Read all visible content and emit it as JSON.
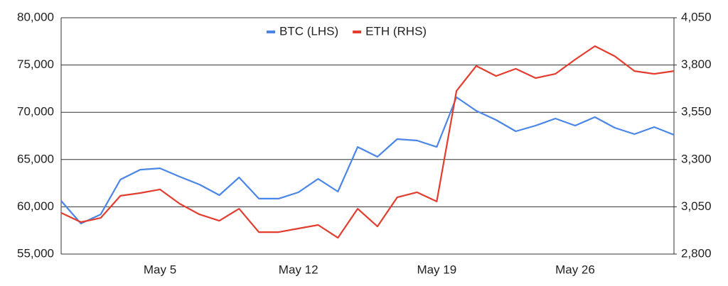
{
  "chart_data": {
    "type": "line",
    "categories": [
      null,
      null,
      null,
      null,
      null,
      "May 5",
      null,
      null,
      null,
      null,
      null,
      null,
      "May 12",
      null,
      null,
      null,
      null,
      null,
      null,
      "May 19",
      null,
      null,
      null,
      null,
      null,
      null,
      "May 26",
      null,
      null,
      null,
      null,
      null
    ],
    "series": [
      {
        "name": "BTC (LHS)",
        "color": "#4a86e8",
        "axis": "y",
        "values": [
          60630,
          58230,
          59200,
          62880,
          63930,
          64080,
          63180,
          62360,
          61230,
          63110,
          60860,
          60860,
          61530,
          62960,
          61610,
          66330,
          65290,
          67160,
          67010,
          66330,
          71590,
          70160,
          69190,
          67990,
          68590,
          69340,
          68590,
          69490,
          68360,
          67690,
          68440,
          67610
        ]
      },
      {
        "name": "ETH (RHS)",
        "color": "#e33d2f",
        "axis": "y2",
        "values": [
          3018,
          2969,
          2991,
          3108,
          3123,
          3142,
          3066,
          3010,
          2976,
          3040,
          2916,
          2916,
          2935,
          2954,
          2886,
          3040,
          2946,
          3100,
          3127,
          3078,
          3663,
          3795,
          3742,
          3780,
          3731,
          3753,
          3829,
          3900,
          3847,
          3768,
          3753,
          3768
        ]
      }
    ],
    "ylim": [
      55000,
      80000
    ],
    "yticks": [
      {
        "value": 55000,
        "label": "55,000"
      },
      {
        "value": 60000,
        "label": "60,000"
      },
      {
        "value": 65000,
        "label": "65,000"
      },
      {
        "value": 70000,
        "label": "70,000"
      },
      {
        "value": 75000,
        "label": "75,000"
      },
      {
        "value": 80000,
        "label": "80,000"
      }
    ],
    "y2lim": [
      2800,
      4050
    ],
    "y2ticks": [
      {
        "value": 2800,
        "label": "2,800"
      },
      {
        "value": 3050,
        "label": "3,050"
      },
      {
        "value": 3300,
        "label": "3,300"
      },
      {
        "value": 3550,
        "label": "3,550"
      },
      {
        "value": 3800,
        "label": "3,800"
      },
      {
        "value": 4050,
        "label": "4,050"
      }
    ],
    "grid": true,
    "legend": "top"
  }
}
